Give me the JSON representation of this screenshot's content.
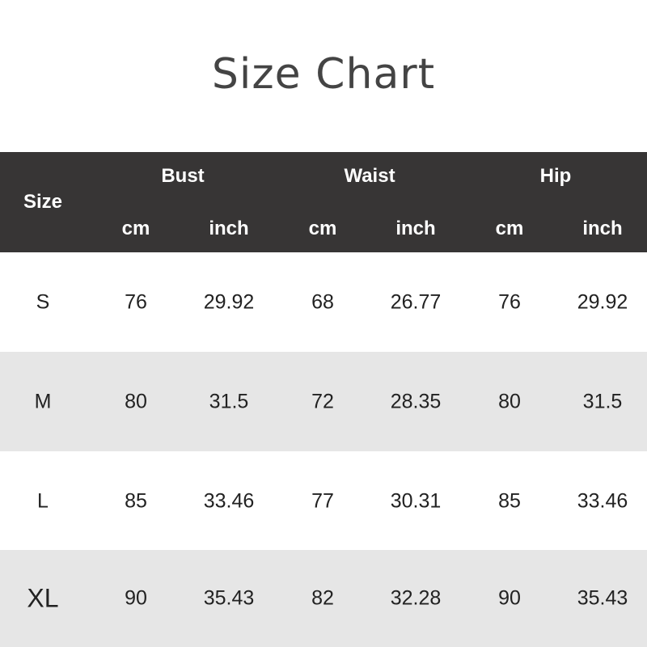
{
  "title": "Size Chart",
  "header": {
    "size": "Size",
    "groups": [
      "Bust",
      "Waist",
      "Hip"
    ],
    "units": [
      "cm",
      "inch",
      "cm",
      "inch",
      "cm",
      "inch"
    ]
  },
  "rows": [
    {
      "size": "S",
      "values": [
        "76",
        "29.92",
        "68",
        "26.77",
        "76",
        "29.92"
      ]
    },
    {
      "size": "M",
      "values": [
        "80",
        "31.5",
        "72",
        "28.35",
        "80",
        "31.5"
      ]
    },
    {
      "size": "L",
      "values": [
        "85",
        "33.46",
        "77",
        "30.31",
        "85",
        "33.46"
      ]
    },
    {
      "size": "XL",
      "values": [
        "90",
        "35.43",
        "82",
        "32.28",
        "90",
        "35.43"
      ]
    }
  ],
  "colors": {
    "header_bg": "#373535",
    "stripe": "#e6e6e6",
    "title": "#444444"
  }
}
